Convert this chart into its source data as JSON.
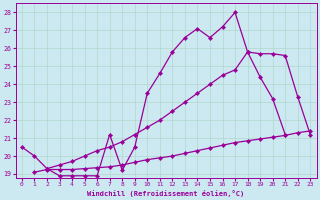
{
  "color": "#990099",
  "bg_color": "#cce8f0",
  "grid_color": "#b0d8cc",
  "xlabel": "Windchill (Refroidissement éolien,°C)",
  "ylim": [
    18.8,
    28.5
  ],
  "xlim": [
    -0.5,
    23.5
  ],
  "yticks": [
    19,
    20,
    21,
    22,
    23,
    24,
    25,
    26,
    27,
    28
  ],
  "xticks": [
    0,
    1,
    2,
    3,
    4,
    5,
    6,
    7,
    8,
    9,
    10,
    11,
    12,
    13,
    14,
    15,
    16,
    17,
    18,
    19,
    20,
    21,
    22,
    23
  ],
  "line_top_x": [
    0,
    1,
    2,
    3,
    4,
    5,
    6,
    7,
    8,
    9,
    10,
    11,
    12,
    13,
    14,
    15,
    16,
    17,
    18,
    19,
    20,
    21
  ],
  "line_top_y": [
    20.5,
    20.0,
    19.3,
    18.9,
    18.9,
    18.9,
    18.9,
    21.2,
    19.2,
    20.5,
    23.5,
    24.6,
    25.8,
    26.6,
    27.1,
    26.6,
    27.2,
    28.0,
    25.8,
    24.4,
    23.2,
    21.2
  ],
  "line_mid_x": [
    2,
    3,
    4,
    5,
    6,
    7,
    8,
    9,
    10,
    11,
    12,
    13,
    14,
    15,
    16,
    17,
    18,
    19,
    20,
    21,
    22,
    23
  ],
  "line_mid_y": [
    19.3,
    19.5,
    19.7,
    20.0,
    20.3,
    20.5,
    20.8,
    21.2,
    21.6,
    22.0,
    22.5,
    23.0,
    23.5,
    24.0,
    24.5,
    24.8,
    25.8,
    25.7,
    25.7,
    25.6,
    23.3,
    21.2
  ],
  "line_bot_x": [
    1,
    2,
    3,
    4,
    5,
    6,
    7,
    8,
    9,
    10,
    11,
    12,
    13,
    14,
    15,
    16,
    17,
    18,
    19,
    20,
    21,
    22,
    23
  ],
  "line_bot_y": [
    19.1,
    19.25,
    19.25,
    19.25,
    19.3,
    19.35,
    19.4,
    19.5,
    19.65,
    19.8,
    19.9,
    20.0,
    20.15,
    20.3,
    20.45,
    20.6,
    20.75,
    20.85,
    20.95,
    21.05,
    21.15,
    21.3,
    21.4
  ]
}
